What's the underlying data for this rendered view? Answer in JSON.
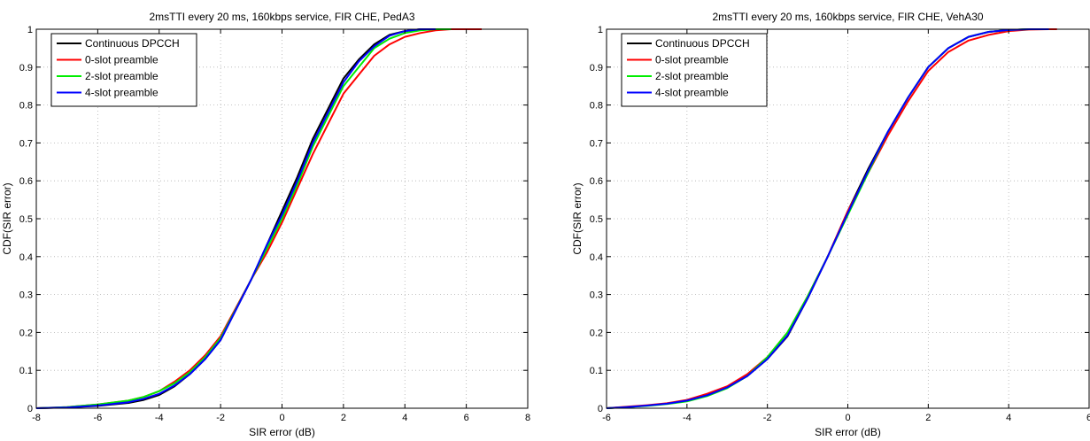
{
  "figure": {
    "charts_order": [
      "left",
      "right"
    ]
  },
  "chart_data": [
    {
      "type": "line",
      "title": "2msTTI every 20 ms, 160kbps service, FIR CHE, PedA3",
      "xlabel": "SIR error (dB)",
      "ylabel": "CDF(SIR error)",
      "xlim": [
        -8,
        8
      ],
      "ylim": [
        0,
        1
      ],
      "xticks": [
        -8,
        -6,
        -4,
        -2,
        0,
        2,
        4,
        6,
        8
      ],
      "yticks": [
        0,
        0.1,
        0.2,
        0.3,
        0.4,
        0.5,
        0.6,
        0.7,
        0.8,
        0.9,
        1
      ],
      "xtick_labels": [
        "-8",
        "-6",
        "-4",
        "-2",
        "0",
        "2",
        "4",
        "6",
        "8"
      ],
      "ytick_labels": [
        "0",
        "0.1",
        "0.2",
        "0.3",
        "0.4",
        "0.5",
        "0.6",
        "0.7",
        "0.8",
        "0.9",
        "1"
      ],
      "grid": true,
      "legend_position": "top-left",
      "series": [
        {
          "name": "Continuous DPCCH",
          "color": "#000000",
          "x": [
            -8,
            -7,
            -6,
            -5,
            -4.5,
            -4,
            -3.5,
            -3,
            -2.5,
            -2,
            -1.5,
            -1,
            -0.5,
            0,
            0.5,
            1,
            1.5,
            2,
            2.5,
            3,
            3.5,
            4,
            4.5,
            5
          ],
          "y": [
            0,
            0.002,
            0.006,
            0.014,
            0.022,
            0.035,
            0.058,
            0.09,
            0.13,
            0.18,
            0.26,
            0.34,
            0.43,
            0.52,
            0.61,
            0.71,
            0.79,
            0.87,
            0.92,
            0.96,
            0.985,
            0.995,
            1.0,
            1.0
          ]
        },
        {
          "name": "0-slot preamble",
          "color": "#ff0000",
          "x": [
            -8,
            -7,
            -6,
            -5,
            -4.5,
            -4,
            -3.5,
            -3,
            -2.5,
            -2,
            -1.5,
            -1,
            -0.5,
            0,
            0.5,
            1,
            1.5,
            2,
            2.5,
            3,
            3.5,
            4,
            4.5,
            5,
            5.5,
            6,
            6.5
          ],
          "y": [
            0,
            0.003,
            0.01,
            0.02,
            0.03,
            0.045,
            0.07,
            0.1,
            0.14,
            0.19,
            0.265,
            0.34,
            0.41,
            0.49,
            0.58,
            0.67,
            0.75,
            0.83,
            0.88,
            0.93,
            0.96,
            0.98,
            0.99,
            0.997,
            1.0,
            1.0,
            1.0
          ]
        },
        {
          "name": "2-slot preamble",
          "color": "#00ee00",
          "x": [
            -8,
            -7,
            -6,
            -5,
            -4.5,
            -4,
            -3.5,
            -3,
            -2.5,
            -2,
            -1.5,
            -1,
            -0.5,
            0,
            0.5,
            1,
            1.5,
            2,
            2.5,
            3,
            3.5,
            4,
            4.5,
            5,
            5.5
          ],
          "y": [
            0,
            0.003,
            0.01,
            0.02,
            0.03,
            0.045,
            0.066,
            0.095,
            0.135,
            0.185,
            0.262,
            0.34,
            0.42,
            0.5,
            0.59,
            0.69,
            0.77,
            0.85,
            0.9,
            0.95,
            0.975,
            0.99,
            0.997,
            1.0,
            1.0
          ]
        },
        {
          "name": "4-slot preamble",
          "color": "#0000ff",
          "x": [
            -8,
            -7,
            -6,
            -5,
            -4.5,
            -4,
            -3.5,
            -3,
            -2.5,
            -2,
            -1.5,
            -1,
            -0.5,
            0,
            0.5,
            1,
            1.5,
            2,
            2.5,
            3,
            3.5,
            4,
            4.5,
            5
          ],
          "y": [
            0,
            0.002,
            0.007,
            0.016,
            0.025,
            0.038,
            0.06,
            0.09,
            0.13,
            0.18,
            0.26,
            0.34,
            0.43,
            0.51,
            0.6,
            0.7,
            0.78,
            0.86,
            0.915,
            0.955,
            0.983,
            0.995,
            1.0,
            1.0
          ]
        }
      ],
      "legend_labels": [
        "Continuous DPCCH",
        "0-slot preamble",
        "2-slot preamble",
        "4-slot preamble"
      ]
    },
    {
      "type": "line",
      "title": "2msTTI every 20 ms, 160kbps service, FIR CHE, VehA30",
      "xlabel": "SIR error (dB)",
      "ylabel": "CDF(SIR error)",
      "xlim": [
        -6,
        6
      ],
      "ylim": [
        0,
        1
      ],
      "xticks": [
        -6,
        -4,
        -2,
        0,
        2,
        4,
        6
      ],
      "yticks": [
        0,
        0.1,
        0.2,
        0.3,
        0.4,
        0.5,
        0.6,
        0.7,
        0.8,
        0.9,
        1
      ],
      "xtick_labels": [
        "-6",
        "-4",
        "-2",
        "0",
        "2",
        "4",
        "6"
      ],
      "ytick_labels": [
        "0",
        "0.1",
        "0.2",
        "0.3",
        "0.4",
        "0.5",
        "0.6",
        "0.7",
        "0.8",
        "0.9",
        "1"
      ],
      "grid": true,
      "legend_position": "top-left",
      "series": [
        {
          "name": "Continuous DPCCH",
          "color": "#000000",
          "x": [
            -6,
            -5.5,
            -5,
            -4.5,
            -4,
            -3.5,
            -3,
            -2.5,
            -2,
            -1.5,
            -1,
            -0.5,
            0,
            0.5,
            1,
            1.5,
            2,
            2.5,
            3,
            3.5,
            4,
            4.5,
            5
          ],
          "y": [
            0,
            0.003,
            0.007,
            0.012,
            0.02,
            0.035,
            0.055,
            0.085,
            0.13,
            0.19,
            0.29,
            0.4,
            0.52,
            0.63,
            0.73,
            0.82,
            0.9,
            0.95,
            0.98,
            0.993,
            0.998,
            1.0,
            1.0
          ]
        },
        {
          "name": "0-slot preamble",
          "color": "#ff0000",
          "x": [
            -6,
            -5.5,
            -5,
            -4.5,
            -4,
            -3.5,
            -3,
            -2.5,
            -2,
            -1.5,
            -1,
            -0.5,
            0,
            0.5,
            1,
            1.5,
            2,
            2.5,
            3,
            3.5,
            4,
            4.5,
            5,
            5.2
          ],
          "y": [
            0,
            0.004,
            0.008,
            0.013,
            0.022,
            0.038,
            0.058,
            0.09,
            0.135,
            0.2,
            0.295,
            0.4,
            0.52,
            0.62,
            0.72,
            0.81,
            0.89,
            0.94,
            0.97,
            0.985,
            0.995,
            0.999,
            1.0,
            1.0
          ]
        },
        {
          "name": "2-slot preamble",
          "color": "#00ee00",
          "x": [
            -6,
            -5.5,
            -5,
            -4.5,
            -4,
            -3.5,
            -3,
            -2.5,
            -2,
            -1.5,
            -1,
            -0.5,
            0,
            0.5,
            1,
            1.5,
            2,
            2.5,
            3,
            3.5,
            4,
            4.5,
            5
          ],
          "y": [
            0,
            0.003,
            0.006,
            0.011,
            0.018,
            0.032,
            0.053,
            0.085,
            0.135,
            0.2,
            0.295,
            0.4,
            0.51,
            0.62,
            0.73,
            0.82,
            0.9,
            0.95,
            0.98,
            0.993,
            0.998,
            1.0,
            1.0
          ]
        },
        {
          "name": "4-slot preamble",
          "color": "#0000ff",
          "x": [
            -6,
            -5.5,
            -5,
            -4.5,
            -4,
            -3.5,
            -3,
            -2.5,
            -2,
            -1.5,
            -1,
            -0.5,
            0,
            0.5,
            1,
            1.5,
            2,
            2.5,
            3,
            3.5,
            4,
            4.5,
            5
          ],
          "y": [
            0,
            0.003,
            0.007,
            0.012,
            0.02,
            0.034,
            0.055,
            0.085,
            0.13,
            0.192,
            0.29,
            0.4,
            0.515,
            0.625,
            0.73,
            0.82,
            0.9,
            0.95,
            0.98,
            0.993,
            0.998,
            1.0,
            1.0
          ]
        }
      ],
      "legend_labels": [
        "Continuous DPCCH",
        "0-slot preamble",
        "2-slot preamble",
        "4-slot preamble"
      ]
    }
  ]
}
